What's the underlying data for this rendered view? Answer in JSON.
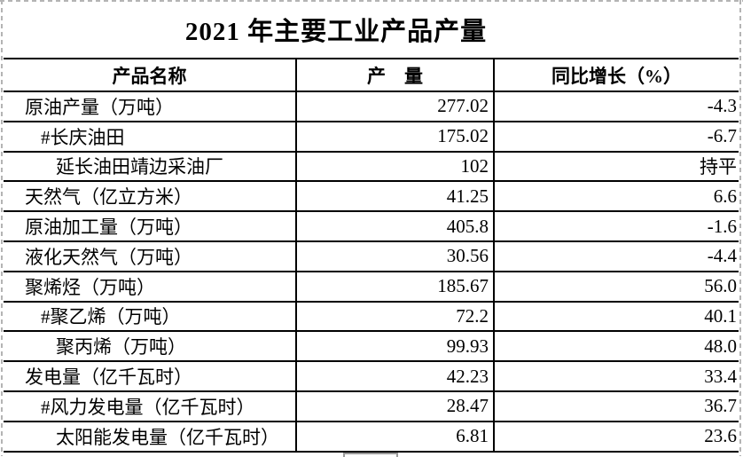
{
  "title": "2021 年主要工业产品产量",
  "colors": {
    "table_border": "#000000",
    "text": "#000000",
    "page_boundary_dash": "#b4b4b4"
  },
  "table": {
    "headers": [
      "产品名称",
      "产　量",
      "同比增长（%）"
    ],
    "rows": [
      {
        "name": "原油产量（万吨）",
        "output": "277.02",
        "growth": "-4.3"
      },
      {
        "name": "#长庆油田",
        "output": "175.02",
        "growth": "-6.7"
      },
      {
        "name": "延长油田靖边采油厂",
        "output": "102",
        "growth": "持平"
      },
      {
        "name": "天然气（亿立方米）",
        "output": "41.25",
        "growth": "6.6"
      },
      {
        "name": "原油加工量（万吨）",
        "output": "405.8",
        "growth": "-1.6"
      },
      {
        "name": "液化天然气（万吨）",
        "output": "30.56",
        "growth": "-4.4"
      },
      {
        "name": "聚烯烃（万吨）",
        "output": "185.67",
        "growth": "56.0"
      },
      {
        "name": "#聚乙烯（万吨）",
        "output": "72.2",
        "growth": "40.1"
      },
      {
        "name": "聚丙烯（万吨）",
        "output": "99.93",
        "growth": "48.0"
      },
      {
        "name": "发电量（亿千瓦时）",
        "output": "42.23",
        "growth": "33.4"
      },
      {
        "name": "#风力发电量（亿千瓦时）",
        "output": "28.47",
        "growth": "36.7"
      },
      {
        "name": "太阳能发电量（亿千瓦时）",
        "output": "6.81",
        "growth": "23.6"
      }
    ]
  }
}
